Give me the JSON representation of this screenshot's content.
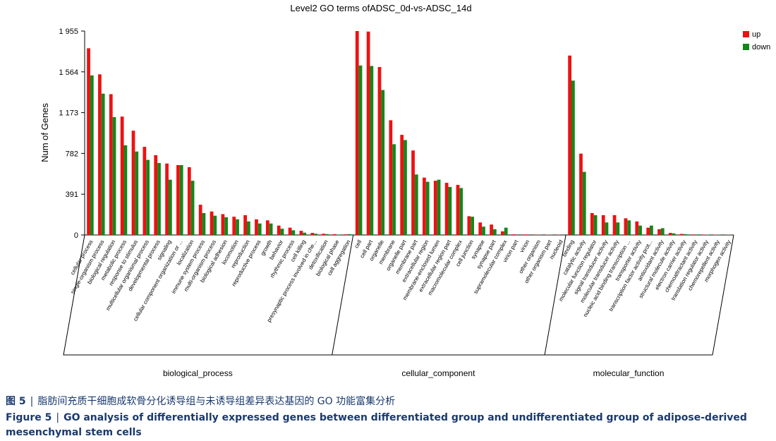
{
  "chart_data": {
    "type": "bar",
    "title": "Level2 GO terms ofADSC_0d-vs-ADSC_14d",
    "ylabel": "Num of Genes",
    "ylim": [
      0,
      1955
    ],
    "yticks": [
      "0",
      "391",
      "782",
      "1 173",
      "1 564",
      "1 955"
    ],
    "ytick_values": [
      0,
      391,
      782,
      1173,
      1564,
      1955
    ],
    "legend_position": "top-right",
    "grid": false,
    "series": [
      {
        "name": "up",
        "color": "#ee1111"
      },
      {
        "name": "down",
        "color": "#11881a"
      }
    ],
    "groups": [
      {
        "name": "biological_process",
        "categories": [
          {
            "label": "cellular process",
            "up": 1790,
            "down": 1530
          },
          {
            "label": "single-organism process",
            "up": 1540,
            "down": 1355
          },
          {
            "label": "biological regulation",
            "up": 1350,
            "down": 1130
          },
          {
            "label": "metabolic process",
            "up": 1135,
            "down": 860
          },
          {
            "label": "response to stimulus",
            "up": 1000,
            "down": 800
          },
          {
            "label": "multicellular organismal process",
            "up": 845,
            "down": 720
          },
          {
            "label": "developmental process",
            "up": 765,
            "down": 690
          },
          {
            "label": "signaling",
            "up": 685,
            "down": 530
          },
          {
            "label": "cellular component organization or ...",
            "up": 670,
            "down": 670
          },
          {
            "label": "localization",
            "up": 650,
            "down": 520
          },
          {
            "label": "immune system process",
            "up": 290,
            "down": 210
          },
          {
            "label": "multi-organism process",
            "up": 225,
            "down": 185
          },
          {
            "label": "biological adhesion",
            "up": 200,
            "down": 170
          },
          {
            "label": "locomotion",
            "up": 175,
            "down": 150
          },
          {
            "label": "reproduction",
            "up": 190,
            "down": 130
          },
          {
            "label": "reproductive process",
            "up": 150,
            "down": 110
          },
          {
            "label": "growth",
            "up": 140,
            "down": 110
          },
          {
            "label": "behavior",
            "up": 90,
            "down": 60
          },
          {
            "label": "rhythmic process",
            "up": 70,
            "down": 45
          },
          {
            "label": "cell killing",
            "up": 40,
            "down": 22
          },
          {
            "label": "presynaptic process involved in che...",
            "up": 20,
            "down": 12
          },
          {
            "label": "detoxification",
            "up": 12,
            "down": 8
          },
          {
            "label": "biological phase",
            "up": 8,
            "down": 4
          },
          {
            "label": "cell aggregation",
            "up": 6,
            "down": 8
          }
        ]
      },
      {
        "name": "cellular_component",
        "categories": [
          {
            "label": "cell",
            "up": 1955,
            "down": 1625
          },
          {
            "label": "cell part",
            "up": 1950,
            "down": 1620
          },
          {
            "label": "organelle",
            "up": 1610,
            "down": 1390
          },
          {
            "label": "membrane",
            "up": 1100,
            "down": 870
          },
          {
            "label": "organelle part",
            "up": 960,
            "down": 910
          },
          {
            "label": "membrane part",
            "up": 810,
            "down": 580
          },
          {
            "label": "extracellular region",
            "up": 550,
            "down": 510
          },
          {
            "label": "membrane-enclosed lumen",
            "up": 520,
            "down": 530
          },
          {
            "label": "extracellular region part",
            "up": 500,
            "down": 460
          },
          {
            "label": "macromolecular complex",
            "up": 480,
            "down": 450
          },
          {
            "label": "cell junction",
            "up": 180,
            "down": 175
          },
          {
            "label": "synapse",
            "up": 120,
            "down": 80
          },
          {
            "label": "synapse part",
            "up": 100,
            "down": 55
          },
          {
            "label": "supramolecular complex",
            "up": 35,
            "down": 70
          },
          {
            "label": "virion part",
            "up": 6,
            "down": 0
          },
          {
            "label": "virion",
            "up": 5,
            "down": 0
          },
          {
            "label": "other organism",
            "up": 4,
            "down": 2
          },
          {
            "label": "other organism part",
            "up": 3,
            "down": 2
          },
          {
            "label": "nucleoid",
            "up": 2,
            "down": 0
          }
        ]
      },
      {
        "name": "molecular_function",
        "categories": [
          {
            "label": "binding",
            "up": 1720,
            "down": 1480
          },
          {
            "label": "catalytic activity",
            "up": 780,
            "down": 605
          },
          {
            "label": "molecular function regulator",
            "up": 210,
            "down": 190
          },
          {
            "label": "signal transducer activity",
            "up": 190,
            "down": 120
          },
          {
            "label": "molecular transducer activity",
            "up": 190,
            "down": 120
          },
          {
            "label": "nucleic acid binding transcription ...",
            "up": 160,
            "down": 140
          },
          {
            "label": "transporter activity",
            "up": 130,
            "down": 90
          },
          {
            "label": "transcription factor activity prot...",
            "up": 70,
            "down": 90
          },
          {
            "label": "antioxidant activity",
            "up": 55,
            "down": 65
          },
          {
            "label": "structural molecule activity",
            "up": 20,
            "down": 15
          },
          {
            "label": "electron carrier activity",
            "up": 10,
            "down": 8
          },
          {
            "label": "chemoattractant activity",
            "up": 5,
            "down": 5
          },
          {
            "label": "translation regulator activity",
            "up": 4,
            "down": 3
          },
          {
            "label": "chemorepellent activity",
            "up": 3,
            "down": 2
          },
          {
            "label": "morphogen activity",
            "up": 2,
            "down": 2
          }
        ]
      }
    ]
  },
  "caption": {
    "zh_label": "图 5",
    "zh_sep": "|",
    "zh_text": "脂肪间充质干细胞成软骨分化诱导组与未诱导组差异表达基因的 GO 功能富集分析",
    "en_label": "Figure 5",
    "en_sep": "|",
    "en_text": "GO analysis of differentially expressed genes between differentiated group and undifferentiated group of adipose-derived mesenchymal stem cells"
  }
}
